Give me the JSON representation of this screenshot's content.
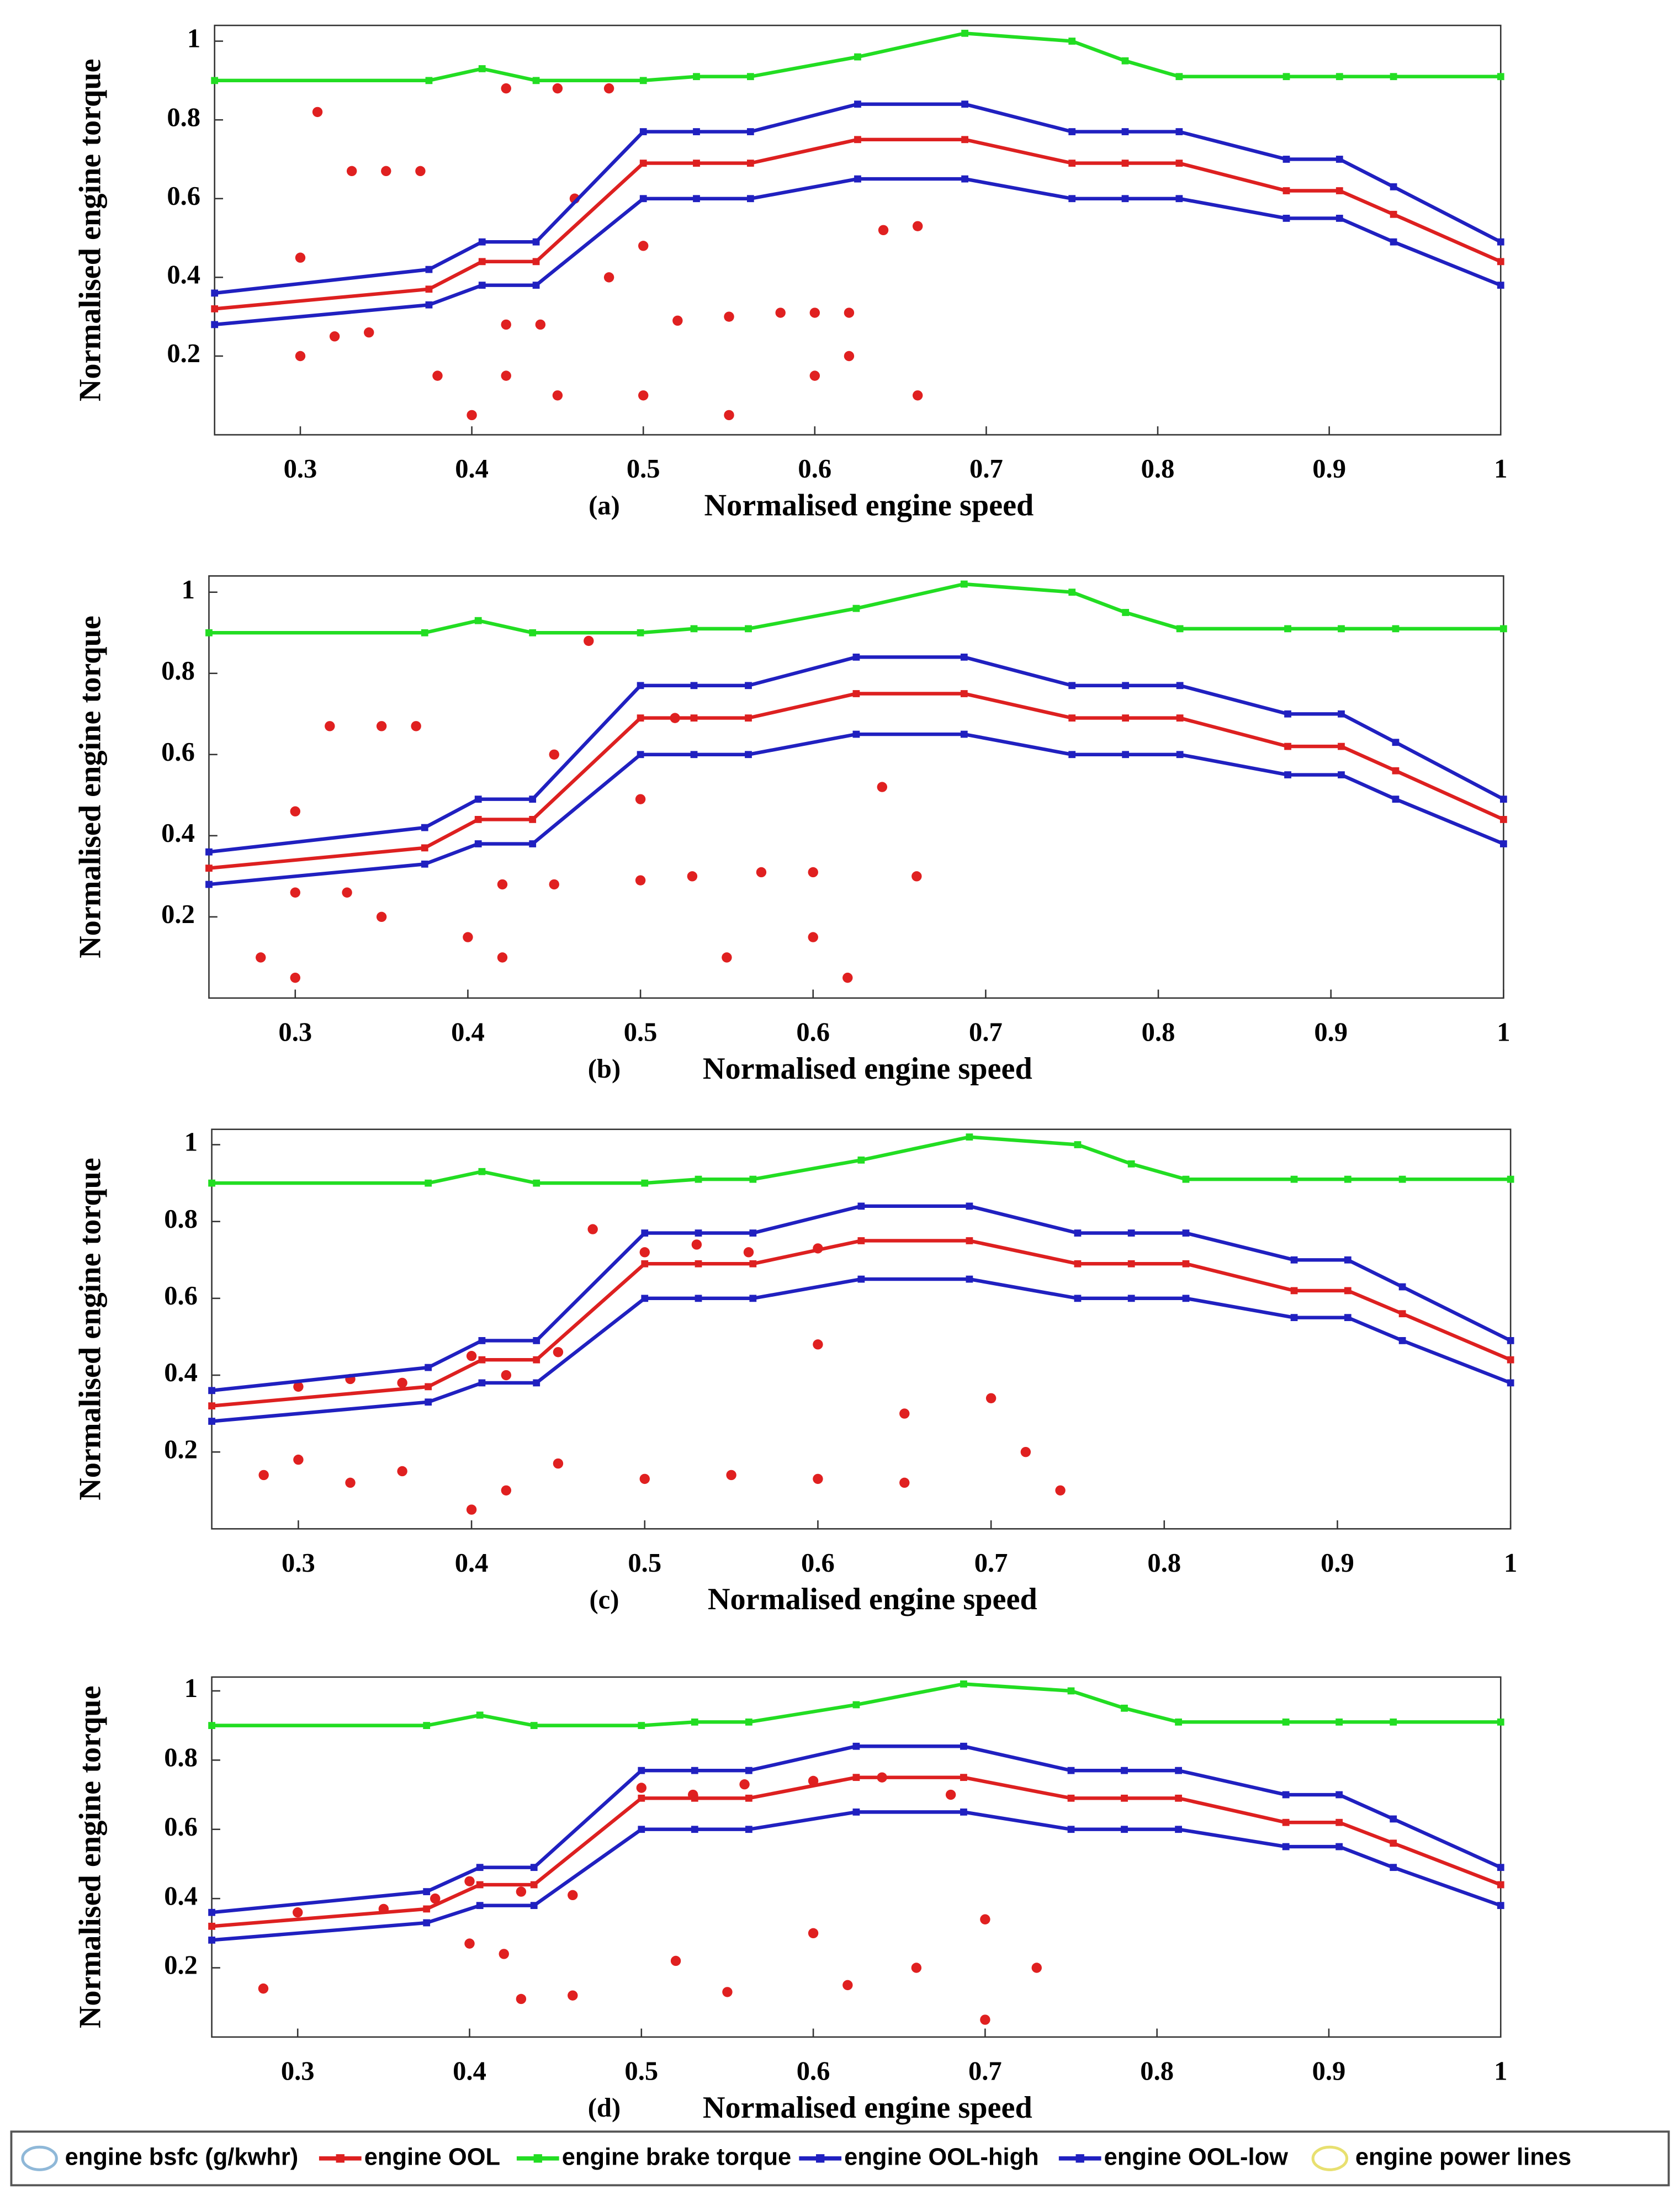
{
  "chart_data": [
    {
      "type": "line",
      "panel": "(a)",
      "xlabel": "Normalised engine speed",
      "ylabel": "Normalised engine torque",
      "xlim": [
        0.25,
        1
      ],
      "ylim": [
        0,
        1.04
      ],
      "xticks": [
        0.3,
        0.4,
        0.5,
        0.6,
        0.7,
        0.8,
        0.9,
        1
      ],
      "yticks": [
        0.2,
        0.4,
        0.6,
        0.8,
        1
      ],
      "x": [
        0.25,
        0.375,
        0.406,
        0.4375,
        0.5,
        0.531,
        0.5625,
        0.625,
        0.6875,
        0.75,
        0.781,
        0.8125,
        0.875,
        0.906,
        0.9375,
        1
      ],
      "series": [
        {
          "color": "#22dd22",
          "values": [
            0.9,
            0.9,
            0.93,
            0.9,
            0.9,
            0.91,
            0.91,
            0.96,
            1.02,
            1.0,
            0.95,
            0.91,
            0.91,
            0.91,
            0.91,
            0.91
          ]
        },
        {
          "color": "#2020c0",
          "values": [
            0.36,
            0.42,
            0.49,
            0.49,
            0.77,
            0.77,
            0.77,
            0.84,
            0.84,
            0.77,
            0.77,
            0.77,
            0.7,
            0.7,
            0.63,
            0.49
          ]
        },
        {
          "color": "#dd2020",
          "values": [
            0.32,
            0.37,
            0.44,
            0.44,
            0.69,
            0.69,
            0.69,
            0.75,
            0.75,
            0.69,
            0.69,
            0.69,
            0.62,
            0.62,
            0.56,
            0.44
          ]
        },
        {
          "color": "#2020c0",
          "values": [
            0.28,
            0.33,
            0.38,
            0.38,
            0.6,
            0.6,
            0.6,
            0.65,
            0.65,
            0.6,
            0.6,
            0.6,
            0.55,
            0.55,
            0.49,
            0.38
          ]
        }
      ],
      "points": {
        "color": "#e02020",
        "x": [
          0.3,
          0.31,
          0.33,
          0.35,
          0.37,
          0.32,
          0.3,
          0.34,
          0.42,
          0.45,
          0.48,
          0.42,
          0.44,
          0.42,
          0.45,
          0.4,
          0.5,
          0.52,
          0.55,
          0.58,
          0.6,
          0.62,
          0.5,
          0.55,
          0.6,
          0.64,
          0.66,
          0.46,
          0.48,
          0.62,
          0.66,
          0.38
        ],
        "y": [
          0.45,
          0.82,
          0.67,
          0.67,
          0.67,
          0.25,
          0.2,
          0.26,
          0.88,
          0.88,
          0.88,
          0.28,
          0.28,
          0.15,
          0.1,
          0.05,
          0.48,
          0.29,
          0.3,
          0.31,
          0.31,
          0.31,
          0.1,
          0.05,
          0.15,
          0.52,
          0.53,
          0.6,
          0.4,
          0.2,
          0.1,
          0.15
        ]
      }
    },
    {
      "type": "line",
      "panel": "(b)",
      "xlabel": "Normalised engine speed",
      "ylabel": "Normalised engine torque",
      "xlim": [
        0.25,
        1
      ],
      "ylim": [
        0,
        1.04
      ],
      "xticks": [
        0.3,
        0.4,
        0.5,
        0.6,
        0.7,
        0.8,
        0.9,
        1
      ],
      "yticks": [
        0.2,
        0.4,
        0.6,
        0.8,
        1
      ],
      "x": [
        0.25,
        0.375,
        0.406,
        0.4375,
        0.5,
        0.531,
        0.5625,
        0.625,
        0.6875,
        0.75,
        0.781,
        0.8125,
        0.875,
        0.906,
        0.9375,
        1
      ],
      "series": [
        {
          "color": "#22dd22",
          "values": [
            0.9,
            0.9,
            0.93,
            0.9,
            0.9,
            0.91,
            0.91,
            0.96,
            1.02,
            1.0,
            0.95,
            0.91,
            0.91,
            0.91,
            0.91,
            0.91
          ]
        },
        {
          "color": "#2020c0",
          "values": [
            0.36,
            0.42,
            0.49,
            0.49,
            0.77,
            0.77,
            0.77,
            0.84,
            0.84,
            0.77,
            0.77,
            0.77,
            0.7,
            0.7,
            0.63,
            0.49
          ]
        },
        {
          "color": "#dd2020",
          "values": [
            0.32,
            0.37,
            0.44,
            0.44,
            0.69,
            0.69,
            0.69,
            0.75,
            0.75,
            0.69,
            0.69,
            0.69,
            0.62,
            0.62,
            0.56,
            0.44
          ]
        },
        {
          "color": "#2020c0",
          "values": [
            0.28,
            0.33,
            0.38,
            0.38,
            0.6,
            0.6,
            0.6,
            0.65,
            0.65,
            0.6,
            0.6,
            0.6,
            0.55,
            0.55,
            0.49,
            0.38
          ]
        }
      ],
      "points": {
        "color": "#e02020",
        "x": [
          0.3,
          0.32,
          0.35,
          0.37,
          0.3,
          0.33,
          0.28,
          0.3,
          0.35,
          0.4,
          0.42,
          0.45,
          0.42,
          0.47,
          0.45,
          0.5,
          0.52,
          0.5,
          0.53,
          0.57,
          0.6,
          0.55,
          0.6,
          0.64,
          0.66,
          0.62
        ],
        "y": [
          0.46,
          0.67,
          0.67,
          0.67,
          0.26,
          0.26,
          0.1,
          0.05,
          0.2,
          0.15,
          0.28,
          0.28,
          0.1,
          0.88,
          0.6,
          0.49,
          0.69,
          0.29,
          0.3,
          0.31,
          0.31,
          0.1,
          0.15,
          0.52,
          0.3,
          0.05
        ]
      }
    },
    {
      "type": "line",
      "panel": "(c)",
      "xlabel": "Normalised engine speed",
      "ylabel": "Normalised engine torque",
      "xlim": [
        0.25,
        1
      ],
      "ylim": [
        0,
        1.04
      ],
      "xticks": [
        0.3,
        0.4,
        0.5,
        0.6,
        0.7,
        0.8,
        0.9,
        1
      ],
      "yticks": [
        0.2,
        0.4,
        0.6,
        0.8,
        1
      ],
      "x": [
        0.25,
        0.375,
        0.406,
        0.4375,
        0.5,
        0.531,
        0.5625,
        0.625,
        0.6875,
        0.75,
        0.781,
        0.8125,
        0.875,
        0.906,
        0.9375,
        1
      ],
      "series": [
        {
          "color": "#22dd22",
          "values": [
            0.9,
            0.9,
            0.93,
            0.9,
            0.9,
            0.91,
            0.91,
            0.96,
            1.02,
            1.0,
            0.95,
            0.91,
            0.91,
            0.91,
            0.91,
            0.91
          ]
        },
        {
          "color": "#2020c0",
          "values": [
            0.36,
            0.42,
            0.49,
            0.49,
            0.77,
            0.77,
            0.77,
            0.84,
            0.84,
            0.77,
            0.77,
            0.77,
            0.7,
            0.7,
            0.63,
            0.49
          ]
        },
        {
          "color": "#dd2020",
          "values": [
            0.32,
            0.37,
            0.44,
            0.44,
            0.69,
            0.69,
            0.69,
            0.75,
            0.75,
            0.69,
            0.69,
            0.69,
            0.62,
            0.62,
            0.56,
            0.44
          ]
        },
        {
          "color": "#2020c0",
          "values": [
            0.28,
            0.33,
            0.38,
            0.38,
            0.6,
            0.6,
            0.6,
            0.65,
            0.65,
            0.6,
            0.6,
            0.6,
            0.55,
            0.55,
            0.49,
            0.38
          ]
        }
      ],
      "points": {
        "color": "#e02020",
        "x": [
          0.28,
          0.3,
          0.33,
          0.36,
          0.3,
          0.33,
          0.36,
          0.4,
          0.42,
          0.45,
          0.42,
          0.4,
          0.45,
          0.47,
          0.5,
          0.53,
          0.56,
          0.6,
          0.5,
          0.55,
          0.6,
          0.65,
          0.7,
          0.72,
          0.74,
          0.65,
          0.6
        ],
        "y": [
          0.14,
          0.18,
          0.12,
          0.15,
          0.37,
          0.39,
          0.38,
          0.45,
          0.4,
          0.46,
          0.1,
          0.05,
          0.17,
          0.78,
          0.72,
          0.74,
          0.72,
          0.73,
          0.13,
          0.14,
          0.13,
          0.12,
          0.34,
          0.2,
          0.1,
          0.3,
          0.48
        ]
      }
    },
    {
      "type": "line",
      "panel": "(d)",
      "xlabel": "Normalised engine speed",
      "ylabel": "Normalised engine torque",
      "xlim": [
        0.25,
        1
      ],
      "ylim": [
        0,
        1.04
      ],
      "xticks": [
        0.3,
        0.4,
        0.5,
        0.6,
        0.7,
        0.8,
        0.9,
        1
      ],
      "yticks": [
        0.2,
        0.4,
        0.6,
        0.8,
        1
      ],
      "x": [
        0.25,
        0.375,
        0.406,
        0.4375,
        0.5,
        0.531,
        0.5625,
        0.625,
        0.6875,
        0.75,
        0.781,
        0.8125,
        0.875,
        0.906,
        0.9375,
        1
      ],
      "series": [
        {
          "color": "#22dd22",
          "values": [
            0.9,
            0.9,
            0.93,
            0.9,
            0.9,
            0.91,
            0.91,
            0.96,
            1.02,
            1.0,
            0.95,
            0.91,
            0.91,
            0.91,
            0.91,
            0.91
          ]
        },
        {
          "color": "#2020c0",
          "values": [
            0.36,
            0.42,
            0.49,
            0.49,
            0.77,
            0.77,
            0.77,
            0.84,
            0.84,
            0.77,
            0.77,
            0.77,
            0.7,
            0.7,
            0.63,
            0.49
          ]
        },
        {
          "color": "#dd2020",
          "values": [
            0.32,
            0.37,
            0.44,
            0.44,
            0.69,
            0.69,
            0.69,
            0.75,
            0.75,
            0.69,
            0.69,
            0.69,
            0.62,
            0.62,
            0.56,
            0.44
          ]
        },
        {
          "color": "#2020c0",
          "values": [
            0.28,
            0.33,
            0.38,
            0.38,
            0.6,
            0.6,
            0.6,
            0.65,
            0.65,
            0.6,
            0.6,
            0.6,
            0.55,
            0.55,
            0.49,
            0.38
          ]
        }
      ],
      "points": {
        "color": "#e02020",
        "x": [
          0.28,
          0.3,
          0.35,
          0.38,
          0.4,
          0.43,
          0.46,
          0.42,
          0.4,
          0.43,
          0.46,
          0.5,
          0.53,
          0.56,
          0.6,
          0.64,
          0.68,
          0.52,
          0.55,
          0.6,
          0.62,
          0.66,
          0.7,
          0.73,
          0.7
        ],
        "y": [
          0.14,
          0.36,
          0.37,
          0.4,
          0.45,
          0.42,
          0.41,
          0.24,
          0.27,
          0.11,
          0.12,
          0.72,
          0.7,
          0.73,
          0.74,
          0.75,
          0.7,
          0.22,
          0.13,
          0.3,
          0.15,
          0.2,
          0.34,
          0.2,
          0.05
        ]
      }
    }
  ],
  "legend": {
    "entries": [
      {
        "label": "engine bsfc (g/kwhr)",
        "color": "#8fb8d8",
        "style": "ellipse"
      },
      {
        "label": "engine OOL",
        "color": "#dd2020",
        "style": "line"
      },
      {
        "label": "engine brake torque",
        "color": "#22dd22",
        "style": "line"
      },
      {
        "label": "engine OOL-high",
        "color": "#2020c0",
        "style": "line"
      },
      {
        "label": "engine OOL-low",
        "color": "#2020c0",
        "style": "line"
      },
      {
        "label": "engine power lines",
        "color": "#e8e070",
        "style": "ellipse"
      }
    ]
  }
}
